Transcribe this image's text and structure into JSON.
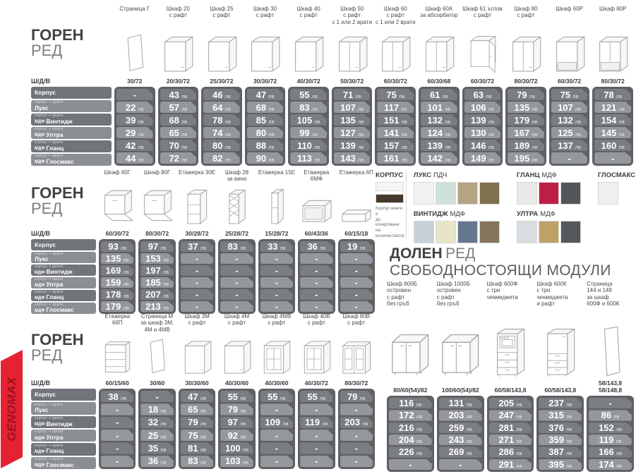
{
  "brand": {
    "name": "GENOMAX",
    "banner_color": "#e52231",
    "logo_text_color": "#9c1120"
  },
  "currency": "лв",
  "dims_label": "Ш/Д/В",
  "finish_rows": [
    {
      "sub": "",
      "prefix": "",
      "label": "Корпус"
    },
    {
      "sub": "корпус + врати",
      "prefix": "",
      "label": "Лукс"
    },
    {
      "sub": "корпус + врати",
      "prefix": "МДФ",
      "label": "Винтидж"
    },
    {
      "sub": "корпус + врати",
      "prefix": "МДФ",
      "label": "Ултра"
    },
    {
      "sub": "корпус + врати",
      "prefix": "МДФ",
      "label": "Гланц"
    },
    {
      "sub": "корпус + врати",
      "prefix": "МДФ",
      "label": "Глосмакс"
    }
  ],
  "sections": [
    {
      "id": "goren-1",
      "title_bold": "ГОРЕН",
      "title_light": "РЕД",
      "columns": [
        {
          "name": "Страница Г",
          "icon": "side-panel-icon",
          "dims": "30/72",
          "prices": [
            "-",
            "22",
            "39",
            "29",
            "42",
            "44"
          ]
        },
        {
          "name": "Шкаф 20\nс рафт",
          "icon": "cabinet-door-icon",
          "dims": "20/30/72",
          "prices": [
            "43",
            "57",
            "68",
            "65",
            "70",
            "72"
          ]
        },
        {
          "name": "Шкаф 25\nс рафт",
          "icon": "cabinet-door-icon",
          "dims": "25/30/72",
          "prices": [
            "46",
            "64",
            "78",
            "74",
            "80",
            "82"
          ]
        },
        {
          "name": "Шкаф 30\nс рафт",
          "icon": "cabinet-door-icon",
          "dims": "30/30/72",
          "prices": [
            "47",
            "68",
            "85",
            "80",
            "88",
            "90"
          ]
        },
        {
          "name": "Шкаф 40\nс рафт",
          "icon": "cabinet-door-icon",
          "dims": "40/30/72",
          "prices": [
            "55",
            "83",
            "105",
            "99",
            "110",
            "113"
          ]
        },
        {
          "name": "Шкаф 50\nс рафт\nс 1 или 2 врати",
          "icon": "cabinet-two-door-icon",
          "dims": "50/30/72",
          "prices": [
            "71",
            "107",
            "135",
            "127",
            "139",
            "143"
          ]
        },
        {
          "name": "Шкаф 60\nс рафт\nс 1 или 2 врати",
          "icon": "cabinet-two-door-icon",
          "dims": "60/30/72",
          "prices": [
            "75",
            "117",
            "151",
            "141",
            "157",
            "161"
          ]
        },
        {
          "name": "Шкаф 60А\nза абсорбатор",
          "icon": "cabinet-two-door-icon",
          "dims": "60/30/68",
          "prices": [
            "61",
            "101",
            "132",
            "124",
            "139",
            "142"
          ]
        },
        {
          "name": "Шкаф 61 ъглов\nс рафт",
          "icon": "corner-cabinet-icon",
          "dims": "60/30/72",
          "prices": [
            "63",
            "106",
            "139",
            "130",
            "146",
            "149"
          ]
        },
        {
          "name": "Шкаф 80\nс рафт",
          "icon": "cabinet-two-door-icon",
          "dims": "80/30/72",
          "prices": [
            "79",
            "135",
            "179",
            "167",
            "189",
            "195"
          ]
        },
        {
          "name": "Шкаф 60Р",
          "icon": "open-niche-cabinet-icon",
          "dims": "60/30/72",
          "prices": [
            "75",
            "107",
            "132",
            "125",
            "137",
            "-"
          ]
        },
        {
          "name": "Шкаф 80Р",
          "icon": "open-niche-two-door-cabinet-icon",
          "dims": "80/30/72",
          "prices": [
            "78",
            "121",
            "154",
            "145",
            "160",
            "-"
          ]
        }
      ]
    },
    {
      "id": "goren-2",
      "title_bold": "ГОРЕН",
      "title_light": "РЕД",
      "columns": [
        {
          "name": "Шкаф 60Г",
          "icon": "flip-door-cabinet-icon",
          "dims": "60/30/72",
          "prices": [
            "93",
            "135",
            "169",
            "159",
            "178",
            "179"
          ]
        },
        {
          "name": "Шкаф 80Г",
          "icon": "flip-door-cabinet-icon",
          "dims": "80/30/72",
          "prices": [
            "97",
            "153",
            "197",
            "185",
            "207",
            "213"
          ]
        },
        {
          "name": "Етажерка 30Е",
          "icon": "corner-shelf-icon",
          "dims": "30/28/72",
          "prices": [
            "37",
            "-",
            "-",
            "-",
            "-",
            "-"
          ]
        },
        {
          "name": "Шкаф 28\nза вино",
          "icon": "wine-rack-icon",
          "dims": "25/28/72",
          "prices": [
            "83",
            "-",
            "-",
            "-",
            "-",
            "-"
          ]
        },
        {
          "name": "Етажерка 15Е",
          "icon": "narrow-shelf-icon",
          "dims": "15/28/72",
          "prices": [
            "33",
            "-",
            "-",
            "-",
            "-",
            "-"
          ]
        },
        {
          "name": "Етажерка 6МФ",
          "icon": "microwave-shelf-icon",
          "dims": "60/43/36",
          "prices": [
            "36",
            "-",
            "-",
            "-",
            "-",
            "-"
          ]
        },
        {
          "name": "Етажерка 6П",
          "icon": "wall-shelf-icon",
          "dims": "60/15/18",
          "prices": [
            "19",
            "-",
            "-",
            "-",
            "-",
            "-"
          ]
        }
      ]
    },
    {
      "id": "goren-3",
      "title_bold": "ГОРЕН",
      "title_light": "РЕД",
      "columns": [
        {
          "name": "Етажерка\n66П",
          "icon": "open-shelf-unit-icon",
          "dims": "60/15/60",
          "prices": [
            "38",
            "-",
            "-",
            "-",
            "-",
            "-"
          ]
        },
        {
          "name": "Страница М\nза шкаф 3М,\n4М и 4МВ",
          "icon": "side-panel-icon",
          "dims": "30/60",
          "prices": [
            "-",
            "18",
            "32",
            "25",
            "35",
            "36"
          ]
        },
        {
          "name": "Шкаф 3М\nс рафт",
          "icon": "cabinet-door-icon",
          "dims": "30/30/60",
          "prices": [
            "47",
            "65",
            "79",
            "75",
            "81",
            "83"
          ]
        },
        {
          "name": "Шкаф 4М\nс рафт",
          "icon": "cabinet-door-icon",
          "dims": "40/30/60",
          "prices": [
            "55",
            "79",
            "97",
            "92",
            "100",
            "103"
          ]
        },
        {
          "name": "Шкаф 4МВ\nс рафт",
          "icon": "glass-door-cabinet-icon",
          "dims": "40/30/60",
          "prices": [
            "55",
            "-",
            "109",
            "-",
            "-",
            "-"
          ]
        },
        {
          "name": "Шкаф 40В\nс рафт",
          "icon": "glass-door-cabinet-icon",
          "dims": "40/30/72",
          "prices": [
            "55",
            "-",
            "119",
            "-",
            "-",
            "-"
          ]
        },
        {
          "name": "Шкаф 80В\nс рафт",
          "icon": "glass-two-door-cabinet-icon",
          "dims": "80/30/72",
          "prices": [
            "79",
            "-",
            "203",
            "-",
            "-",
            "-"
          ]
        }
      ]
    },
    {
      "id": "dolen",
      "title_bold": "ДОЛЕН",
      "title_light": "РЕД",
      "subtitle": "СВОБОДНОСТОЯЩИ МОДУЛИ",
      "columns": [
        {
          "name": "Шкаф 800Б\nостровен\nс рафт\nбез гръб",
          "icon": "base-two-door-cabinet-icon",
          "dims": "80/60(54)/82",
          "prices": [
            "116",
            "172",
            "216",
            "204",
            "226",
            "-"
          ]
        },
        {
          "name": "Шкаф 1000Б\nостровен\nс рафт\nбез гръб",
          "icon": "base-two-door-cabinet-icon",
          "dims": "100/60(54)/82",
          "prices": [
            "131",
            "203",
            "259",
            "243",
            "269",
            "-"
          ]
        },
        {
          "name": "Шкаф 600Ф\nс три\nчекмеджета",
          "icon": "tall-oven-cabinet-icon",
          "dims": "60/58/143,8",
          "prices": [
            "205",
            "247",
            "281",
            "271",
            "286",
            "291"
          ]
        },
        {
          "name": "Шкаф 600К\nс три\nчекмеджета\nи рафт",
          "icon": "tall-drawer-cabinet-icon",
          "dims": "60/58/143,8",
          "prices": [
            "237",
            "315",
            "376",
            "359",
            "387",
            "395"
          ]
        },
        {
          "name": "Страница\n144 и 149\nза шкаф\n600Ф и 600К",
          "icon": "tall-panel-icon",
          "dims": "58/143,8\n58/148,8",
          "prices": [
            "-",
            "86",
            "152",
            "119",
            "166",
            "174"
          ]
        }
      ]
    }
  ],
  "legend": {
    "corpus": {
      "title": "КОРПУС",
      "swatches": [
        "#f5f5f3",
        "#46382a"
      ],
      "caption": "Корпус венге е\nдо изчерпване\nна количествата!"
    },
    "groups": [
      {
        "bold": "ЛУКС",
        "rest": "ПДЧ",
        "row": 1,
        "swatches": [
          "#f2f2f0",
          "#cfe2d9",
          "#b3a483",
          "#7e7150"
        ]
      },
      {
        "bold": "ГЛАНЦ",
        "rest": "МДФ",
        "row": 1,
        "swatches": [
          "#e9eae8",
          "#bf1f47",
          "#53575b"
        ]
      },
      {
        "bold": "ГЛОСМАКС",
        "rest": "МДФ",
        "row": 1,
        "swatches": [
          "#eff0ee"
        ]
      },
      {
        "bold": "ВИНТИДЖ",
        "rest": "МДФ",
        "row": 2,
        "swatches": [
          "#c9cfd6",
          "#e8e4c7",
          "#67778e",
          "#86745e"
        ]
      },
      {
        "bold": "УЛТРА",
        "rest": "МДФ",
        "row": 2,
        "swatches": [
          "#dadde0",
          "#bfa168",
          "#54585c"
        ]
      }
    ]
  }
}
